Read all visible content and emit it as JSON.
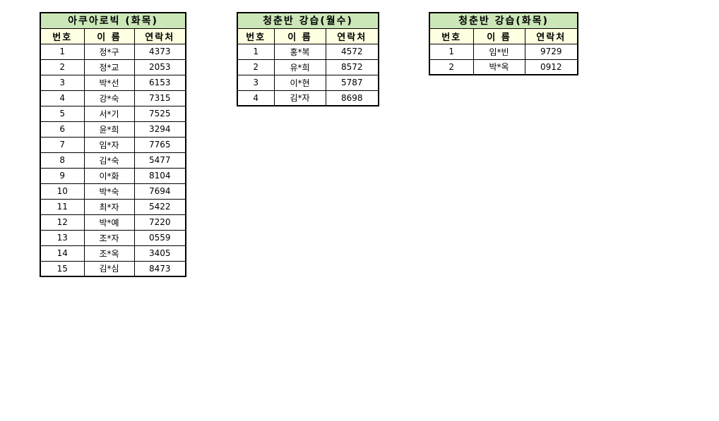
{
  "colors": {
    "title_bg": "#cbe7b8",
    "header_bg": "#ffffe1",
    "border_color": "#000000",
    "text_color": "#000000",
    "page_bg": "#ffffff"
  },
  "tables": [
    {
      "title": "아쿠아로빅 (화목)",
      "headers": [
        "번호",
        "이 름",
        "연락처"
      ],
      "rows": [
        [
          "1",
          "정*구",
          "4373"
        ],
        [
          "2",
          "정*교",
          "2053"
        ],
        [
          "3",
          "박*선",
          "6153"
        ],
        [
          "4",
          "강*숙",
          "7315"
        ],
        [
          "5",
          "서*기",
          "7525"
        ],
        [
          "6",
          "윤*희",
          "3294"
        ],
        [
          "7",
          "임*자",
          "7765"
        ],
        [
          "8",
          "김*숙",
          "5477"
        ],
        [
          "9",
          "이*화",
          "8104"
        ],
        [
          "10",
          "박*숙",
          "7694"
        ],
        [
          "11",
          "최*자",
          "5422"
        ],
        [
          "12",
          "박*예",
          "7220"
        ],
        [
          "13",
          "조*자",
          "0559"
        ],
        [
          "14",
          "조*옥",
          "3405"
        ],
        [
          "15",
          "김*심",
          "8473"
        ]
      ]
    },
    {
      "title": "청춘반 강습(월수)",
      "headers": [
        "번호",
        "이 름",
        "연락처"
      ],
      "rows": [
        [
          "1",
          "홍*복",
          "4572"
        ],
        [
          "2",
          "유*희",
          "8572"
        ],
        [
          "3",
          "이*현",
          "5787"
        ],
        [
          "4",
          "김*자",
          "8698"
        ]
      ]
    },
    {
      "title": "청춘반 강습(화목)",
      "headers": [
        "번호",
        "이 름",
        "연락처"
      ],
      "rows": [
        [
          "1",
          "임*빈",
          "9729"
        ],
        [
          "2",
          "박*옥",
          "0912"
        ]
      ]
    }
  ]
}
